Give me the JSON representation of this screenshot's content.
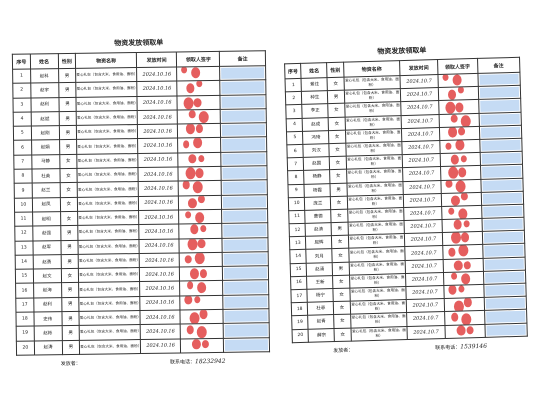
{
  "sheets": [
    {
      "title": "物资发放领取单",
      "headers": [
        "序号",
        "姓名",
        "性别",
        "物资名称",
        "发放时间",
        "领取人签字",
        "备注"
      ],
      "rows": [
        [
          "1",
          "赵科",
          "男",
          "爱心礼包（包含大米、食用油、面粉）",
          "2024.10.16"
        ],
        [
          "2",
          "赵宇",
          "男",
          "爱心礼包（包含大米、食用油、面粉）",
          "2024.10.16"
        ],
        [
          "3",
          "赵利",
          "男",
          "爱心礼包（包含大米、食用油、面粉）",
          "2024.10.16"
        ],
        [
          "4",
          "赵斌",
          "男",
          "爱心礼包（包含大米、食用油、面粉）",
          "2024.10.16"
        ],
        [
          "5",
          "赵刚",
          "男",
          "爱心礼包（包含大米、食用油、面粉）",
          "2024.10.16"
        ],
        [
          "6",
          "赵娟",
          "男",
          "爱心礼包（包含大米、食用油、面粉）",
          "2024.10.16"
        ],
        [
          "7",
          "马静",
          "女",
          "爱心礼包（包含大米、食用油、面粉）",
          "2024.10.16"
        ],
        [
          "8",
          "杜英",
          "女",
          "爱心礼包（包含大米、食用油、面粉）",
          "2024.10.16"
        ],
        [
          "9",
          "赵兰",
          "女",
          "爱心礼包（包含大米、食用油、面粉）",
          "2024.10.16"
        ],
        [
          "10",
          "赵凤",
          "女",
          "爱心礼包（包含大米、食用油、面粉）",
          "2024.10.16"
        ],
        [
          "11",
          "赵明",
          "女",
          "爱心礼包（包含大米、食用油、面粉）",
          "2024.10.16"
        ],
        [
          "12",
          "赵强",
          "男",
          "爱心礼包（包含大米、食用油、面粉）",
          "2024.10.16"
        ],
        [
          "13",
          "赵军",
          "男",
          "爱心礼包（包含大米、食用油、面粉）",
          "2024.10.16"
        ],
        [
          "14",
          "赵勇",
          "男",
          "爱心礼包（包含大米、食用油、面粉）",
          "2024.10.16"
        ],
        [
          "15",
          "赵文",
          "女",
          "爱心礼包（包含大米、食用油、面粉）",
          "2024.10.16"
        ],
        [
          "16",
          "赵海",
          "男",
          "爱心礼包（包含大米、食用油、面粉）",
          "2024.10.16"
        ],
        [
          "17",
          "赵利",
          "男",
          "爱心礼包（包含大米、食用油、面粉）",
          "2024.10.16"
        ],
        [
          "18",
          "史伟",
          "男",
          "爱心礼包（包含大米、食用油、面粉）",
          "2024.10.16"
        ],
        [
          "19",
          "赵彬",
          "男",
          "爱心礼包（包含大米、食用油、面粉）",
          "2024.10.16"
        ],
        [
          "20",
          "赵涛",
          "男",
          "爱心礼包（包含大米、食用油、面粉）",
          "2024.10.16"
        ]
      ],
      "footer": {
        "issuer_label": "发放者：",
        "phone_label": "联系电话：",
        "phone": "18232942"
      }
    },
    {
      "title": "物资发放领取单",
      "headers": [
        "序号",
        "姓名",
        "性别",
        "物资名称",
        "发放时间",
        "领取人签字",
        "备注"
      ],
      "rows": [
        [
          "1",
          "景往",
          "女",
          "爱心礼包（包含大米、食用油、面粉）",
          "2024.10.7"
        ],
        [
          "2",
          "种生",
          "男",
          "爱心礼包（包含大米、食用油、面粉）",
          "2024.10.7"
        ],
        [
          "3",
          "李正",
          "女",
          "爱心礼包（包含大米、食用油、面粉）",
          "2024.10.7"
        ],
        [
          "4",
          "赵成",
          "女",
          "爱心礼包（包含大米、食用油、面粉）",
          "2024.10.7"
        ],
        [
          "5",
          "冯琦",
          "女",
          "爱心礼包（包含大米、食用油、面粉）",
          "2024.10.7"
        ],
        [
          "6",
          "刘汉",
          "女",
          "爱心礼包（包含大米、食用油、面粉）",
          "2024.10.7"
        ],
        [
          "7",
          "赵国",
          "女",
          "爱心礼包（包含大米、食用油、面粉）",
          "2024.10.7"
        ],
        [
          "8",
          "杨静",
          "女",
          "爱心礼包（包含大米、食用油、面粉）",
          "2024.10.7"
        ],
        [
          "9",
          "杨霞",
          "男",
          "爱心礼包（包含大米、食用油、面粉）",
          "2024.10.7"
        ],
        [
          "10",
          "庞兰",
          "女",
          "爱心礼包（包含大米、食用油、面粉）",
          "2024.10.7"
        ],
        [
          "11",
          "曹德",
          "女",
          "爱心礼包（包含大米、食用油、面粉）",
          "2024.10.7"
        ],
        [
          "12",
          "赵清",
          "男",
          "爱心礼包（包含大米、食用油、面粉）",
          "2024.10.7"
        ],
        [
          "13",
          "屈辉",
          "女",
          "爱心礼包（包含大米、食用油、面粉）",
          "2024.10.7"
        ],
        [
          "14",
          "刘月",
          "女",
          "爱心礼包（包含大米、食用油、面粉）",
          "2024.10.7"
        ],
        [
          "15",
          "赵涌",
          "男",
          "爱心礼包（包含大米、食用油、面粉）",
          "2024.10.7"
        ],
        [
          "16",
          "王新",
          "女",
          "爱心礼包（包含大米、食用油、面粉）",
          "2024.10.7"
        ],
        [
          "17",
          "杨宁",
          "女",
          "爱心礼包（包含大米、食用油、面粉）",
          "2024.10.7"
        ],
        [
          "18",
          "杜菲",
          "女",
          "爱心礼包（包含大米、食用油、面粉）",
          "2024.10.7"
        ],
        [
          "19",
          "赵青",
          "女",
          "爱心礼包（包含大米、食用油、面粉）",
          "2024.10.7"
        ],
        [
          "20",
          "薛宗",
          "女",
          "爱心礼包（包含大米、食用油、面粉）",
          "2024.10.7"
        ]
      ],
      "footer": {
        "issuer_label": "发放者：",
        "phone_label": "联系电话：",
        "phone": "1539146"
      }
    }
  ]
}
